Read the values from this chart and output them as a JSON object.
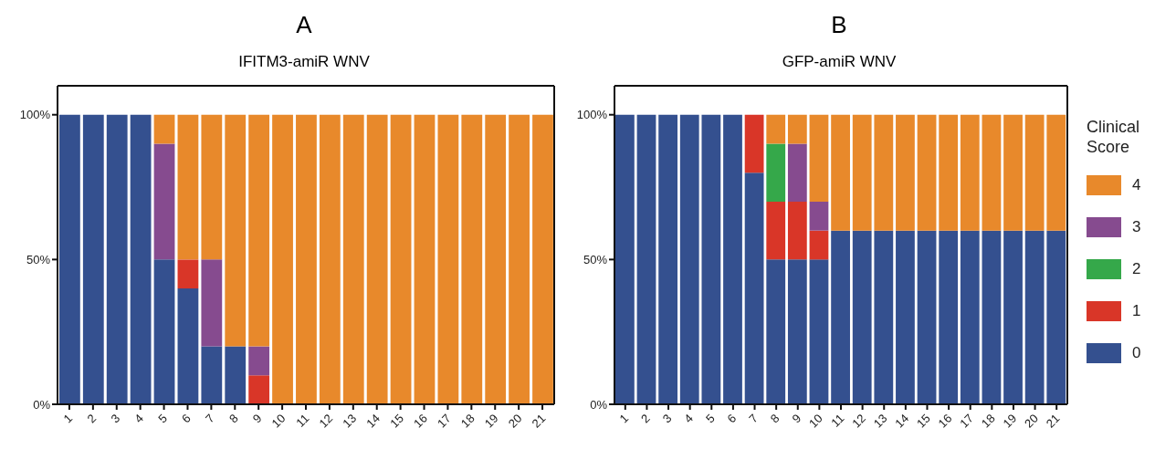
{
  "chart_data": [
    {
      "type": "bar",
      "title": "A",
      "subtitle": "IFITM3-amiR WNV",
      "stacked": true,
      "x": [
        1,
        2,
        3,
        4,
        5,
        6,
        7,
        8,
        9,
        10,
        11,
        12,
        13,
        14,
        15,
        16,
        17,
        18,
        19,
        20,
        21
      ],
      "series": [
        {
          "color": "#34508f",
          "values": [
            100,
            100,
            100,
            100,
            50,
            40,
            20,
            20,
            0,
            0,
            0,
            0,
            0,
            0,
            0,
            0,
            0,
            0,
            0,
            0,
            0
          ]
        },
        {
          "color": "#d93628",
          "values": [
            0,
            0,
            0,
            0,
            0,
            10,
            0,
            0,
            10,
            0,
            0,
            0,
            0,
            0,
            0,
            0,
            0,
            0,
            0,
            0,
            0
          ]
        },
        {
          "color": "#35a84a",
          "values": [
            0,
            0,
            0,
            0,
            0,
            0,
            0,
            0,
            0,
            0,
            0,
            0,
            0,
            0,
            0,
            0,
            0,
            0,
            0,
            0,
            0
          ]
        },
        {
          "color": "#864b8f",
          "values": [
            0,
            0,
            0,
            0,
            40,
            0,
            30,
            0,
            10,
            0,
            0,
            0,
            0,
            0,
            0,
            0,
            0,
            0,
            0,
            0,
            0
          ]
        },
        {
          "color": "#e8892b",
          "values": [
            0,
            0,
            0,
            0,
            10,
            50,
            50,
            80,
            80,
            100,
            100,
            100,
            100,
            100,
            100,
            100,
            100,
            100,
            100,
            100,
            100
          ]
        }
      ],
      "xlim": [
        0.5,
        21.5
      ],
      "xticks": [
        1,
        2,
        3,
        4,
        5,
        6,
        7,
        8,
        9,
        10,
        11,
        12,
        13,
        14,
        15,
        16,
        17,
        18,
        19,
        20,
        21
      ],
      "ylim": [
        0,
        110
      ],
      "yticks": [
        {
          "value": 0,
          "label": "0%"
        },
        {
          "value": 50,
          "label": "50%"
        },
        {
          "value": 100,
          "label": "100%"
        }
      ],
      "grid": false,
      "legend": false
    },
    {
      "type": "bar",
      "title": "B",
      "subtitle": "GFP-amiR WNV",
      "stacked": true,
      "legend_title": "Clinical Score",
      "x": [
        1,
        2,
        3,
        4,
        5,
        6,
        7,
        8,
        9,
        10,
        11,
        12,
        13,
        14,
        15,
        16,
        17,
        18,
        19,
        20,
        21
      ],
      "series": [
        {
          "name": "0",
          "color": "#34508f",
          "values": [
            100,
            100,
            100,
            100,
            100,
            100,
            80,
            50,
            50,
            50,
            60,
            60,
            60,
            60,
            60,
            60,
            60,
            60,
            60,
            60,
            60
          ]
        },
        {
          "name": "1",
          "color": "#d93628",
          "values": [
            0,
            0,
            0,
            0,
            0,
            0,
            20,
            20,
            20,
            10,
            0,
            0,
            0,
            0,
            0,
            0,
            0,
            0,
            0,
            0,
            0
          ]
        },
        {
          "name": "2",
          "color": "#35a84a",
          "values": [
            0,
            0,
            0,
            0,
            0,
            0,
            0,
            20,
            0,
            0,
            0,
            0,
            0,
            0,
            0,
            0,
            0,
            0,
            0,
            0,
            0
          ]
        },
        {
          "name": "3",
          "color": "#864b8f",
          "values": [
            0,
            0,
            0,
            0,
            0,
            0,
            0,
            0,
            20,
            10,
            0,
            0,
            0,
            0,
            0,
            0,
            0,
            0,
            0,
            0,
            0
          ]
        },
        {
          "name": "4",
          "color": "#e8892b",
          "values": [
            0,
            0,
            0,
            0,
            0,
            0,
            0,
            10,
            10,
            30,
            40,
            40,
            40,
            40,
            40,
            40,
            40,
            40,
            40,
            40,
            40
          ]
        }
      ],
      "xlim": [
        0.5,
        21.5
      ],
      "xticks": [
        1,
        2,
        3,
        4,
        5,
        6,
        7,
        8,
        9,
        10,
        11,
        12,
        13,
        14,
        15,
        16,
        17,
        18,
        19,
        20,
        21
      ],
      "ylim": [
        0,
        110
      ],
      "yticks": [
        {
          "value": 0,
          "label": "0%"
        },
        {
          "value": 50,
          "label": "50%"
        },
        {
          "value": 100,
          "label": "100%"
        }
      ],
      "grid": false,
      "legend": "right"
    }
  ]
}
